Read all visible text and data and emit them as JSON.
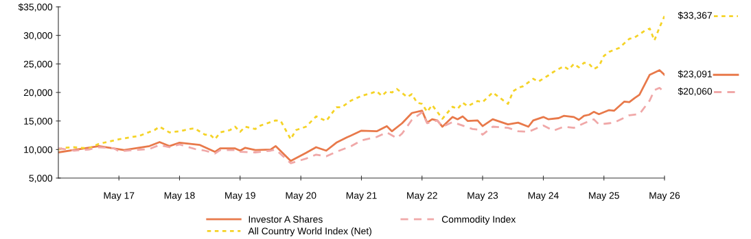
{
  "chart_data": {
    "type": "line",
    "xlim": [
      "2016-05",
      "2026-05"
    ],
    "ylim": [
      5000,
      35000
    ],
    "xticks": [
      {
        "value": "2017-05",
        "label": "May 17"
      },
      {
        "value": "2018-05",
        "label": "May 18"
      },
      {
        "value": "2019-05",
        "label": "May 19"
      },
      {
        "value": "2020-05",
        "label": "May 20"
      },
      {
        "value": "2021-05",
        "label": "May 21"
      },
      {
        "value": "2022-05",
        "label": "May 22"
      },
      {
        "value": "2023-05",
        "label": "May 23"
      },
      {
        "value": "2024-05",
        "label": "May 24"
      },
      {
        "value": "2025-05",
        "label": "May 25"
      },
      {
        "value": "2026-05",
        "label": "May 26"
      }
    ],
    "yticks": [
      {
        "value": 5000,
        "label": "5,000"
      },
      {
        "value": 10000,
        "label": "10,000"
      },
      {
        "value": 15000,
        "label": "15,000"
      },
      {
        "value": 20000,
        "label": "20,000"
      },
      {
        "value": 25000,
        "label": "25,000"
      },
      {
        "value": 30000,
        "label": "30,000"
      },
      {
        "value": 35000,
        "label": "$35,000"
      }
    ],
    "grid": false,
    "legend": "bottom",
    "marker": "none",
    "series": [
      {
        "name": "Investor A Shares",
        "color": "#e8794a",
        "line_style": "solid",
        "x": [
          "2016-05",
          "2017-01",
          "2017-06",
          "2017-11",
          "2018-01",
          "2018-03",
          "2018-05",
          "2018-09",
          "2018-12",
          "2019-01",
          "2019-04",
          "2019-05",
          "2019-06",
          "2019-08",
          "2019-11",
          "2019-12",
          "2020-03",
          "2020-06",
          "2020-08",
          "2020-10",
          "2020-12",
          "2021-02",
          "2021-05",
          "2021-08",
          "2021-10",
          "2021-11",
          "2022-01",
          "2022-03",
          "2022-05",
          "2022-06",
          "2022-07",
          "2022-08",
          "2022-09",
          "2022-11",
          "2022-12",
          "2023-01",
          "2023-02",
          "2023-04",
          "2023-05",
          "2023-07",
          "2023-10",
          "2023-12",
          "2024-02",
          "2024-03",
          "2024-05",
          "2024-06",
          "2024-08",
          "2024-09",
          "2024-11",
          "2024-12",
          "2025-01",
          "2025-02",
          "2025-03",
          "2025-04",
          "2025-06",
          "2025-07",
          "2025-09",
          "2025-10",
          "2025-11",
          "2025-12",
          "2026-02",
          "2026-04",
          "2026-05"
        ],
        "values": [
          9500,
          10600,
          9900,
          10600,
          11300,
          10600,
          11200,
          10800,
          9600,
          10200,
          10200,
          9800,
          10300,
          9900,
          10000,
          10600,
          8000,
          9400,
          10400,
          9800,
          11200,
          12100,
          13300,
          13200,
          14100,
          13200,
          14600,
          16400,
          16800,
          14700,
          15300,
          15100,
          14000,
          15700,
          15300,
          15800,
          15000,
          15100,
          14100,
          15300,
          14400,
          14700,
          14000,
          15100,
          15700,
          15300,
          15500,
          15900,
          15700,
          15200,
          15900,
          16100,
          16600,
          16200,
          16900,
          16800,
          18400,
          18300,
          19000,
          19600,
          23100,
          23900,
          23091
        ]
      },
      {
        "name": "All Country World Index (Net)",
        "color": "#f5d327",
        "line_style": "dotted",
        "x": [
          "2016-05",
          "2016-06",
          "2016-08",
          "2016-11",
          "2017-01",
          "2017-05",
          "2017-09",
          "2017-12",
          "2018-01",
          "2018-03",
          "2018-05",
          "2018-07",
          "2018-08",
          "2018-10",
          "2018-11",
          "2018-12",
          "2019-01",
          "2019-03",
          "2019-04",
          "2019-05",
          "2019-06",
          "2019-08",
          "2019-09",
          "2019-12",
          "2020-01",
          "2020-03",
          "2020-04",
          "2020-06",
          "2020-08",
          "2020-10",
          "2020-12",
          "2021-01",
          "2021-03",
          "2021-05",
          "2021-07",
          "2021-08",
          "2021-09",
          "2021-10",
          "2021-11",
          "2021-12",
          "2022-02",
          "2022-03",
          "2022-04",
          "2022-05",
          "2022-06",
          "2022-07",
          "2022-09",
          "2022-11",
          "2022-12",
          "2023-01",
          "2023-02",
          "2023-04",
          "2023-05",
          "2023-07",
          "2023-10",
          "2023-11",
          "2023-12",
          "2024-01",
          "2024-03",
          "2024-04",
          "2024-06",
          "2024-07",
          "2024-09",
          "2024-10",
          "2024-11",
          "2024-12",
          "2025-01",
          "2025-02",
          "2025-03",
          "2025-04",
          "2025-05",
          "2025-06",
          "2025-08",
          "2025-10",
          "2025-11",
          "2026-01",
          "2026-02",
          "2026-03",
          "2026-04",
          "2026-05"
        ],
        "values": [
          10000,
          10300,
          10400,
          10200,
          11000,
          11800,
          12400,
          13400,
          14000,
          13000,
          13200,
          13600,
          13700,
          12600,
          12600,
          11800,
          13000,
          13400,
          14000,
          13100,
          14000,
          13600,
          14200,
          15100,
          15000,
          11800,
          13400,
          14000,
          15800,
          15000,
          17400,
          17400,
          18600,
          19400,
          19900,
          20200,
          19400,
          20200,
          20000,
          20600,
          19200,
          19700,
          18200,
          18000,
          16600,
          17800,
          15400,
          17500,
          17100,
          18200,
          17600,
          18500,
          18300,
          20000,
          18000,
          20200,
          20800,
          21100,
          22400,
          21900,
          23000,
          23600,
          24600,
          24000,
          25000,
          24400,
          25200,
          25000,
          24100,
          24600,
          26400,
          27100,
          27800,
          29400,
          29600,
          30800,
          31200,
          29100,
          31400,
          33367
        ]
      },
      {
        "name": "Commodity Index",
        "color": "#f0a8a8",
        "line_style": "dashed",
        "x": [
          "2016-05",
          "2016-06",
          "2016-08",
          "2016-11",
          "2017-01",
          "2017-04",
          "2017-05",
          "2017-08",
          "2017-11",
          "2018-01",
          "2018-03",
          "2018-05",
          "2018-08",
          "2018-10",
          "2018-12",
          "2019-01",
          "2019-04",
          "2019-05",
          "2019-08",
          "2019-11",
          "2019-12",
          "2020-03",
          "2020-06",
          "2020-08",
          "2020-10",
          "2020-12",
          "2021-03",
          "2021-05",
          "2021-08",
          "2021-10",
          "2021-12",
          "2022-01",
          "2022-03",
          "2022-05",
          "2022-06",
          "2022-08",
          "2022-09",
          "2022-11",
          "2023-01",
          "2023-03",
          "2023-04",
          "2023-05",
          "2023-07",
          "2023-10",
          "2023-12",
          "2024-02",
          "2024-05",
          "2024-07",
          "2024-09",
          "2024-11",
          "2025-01",
          "2025-03",
          "2025-04",
          "2025-06",
          "2025-07",
          "2025-10",
          "2025-12",
          "2026-02",
          "2026-03",
          "2026-04",
          "2026-05"
        ],
        "values": [
          10200,
          10100,
          9800,
          10000,
          10400,
          10200,
          9700,
          9900,
          10100,
          10800,
          10400,
          10900,
          10100,
          9800,
          9300,
          9900,
          9900,
          9600,
          9500,
          9800,
          10000,
          7600,
          8400,
          9100,
          8800,
          9600,
          10600,
          11600,
          12200,
          13000,
          12000,
          12800,
          15200,
          16500,
          14600,
          15100,
          14000,
          14800,
          14200,
          13600,
          13500,
          12600,
          14000,
          13800,
          13200,
          13100,
          14200,
          13300,
          14000,
          13800,
          14600,
          15300,
          14400,
          14600,
          14700,
          16000,
          16200,
          18600,
          20400,
          20800,
          20060
        ]
      }
    ],
    "annotations": [
      {
        "text": "$33,367",
        "x": "2026-05",
        "y": 33367
      },
      {
        "text": "$23,091",
        "x": "2026-05",
        "y": 23091
      },
      {
        "text": "$20,060",
        "x": "2026-05",
        "y": 20060
      }
    ]
  }
}
